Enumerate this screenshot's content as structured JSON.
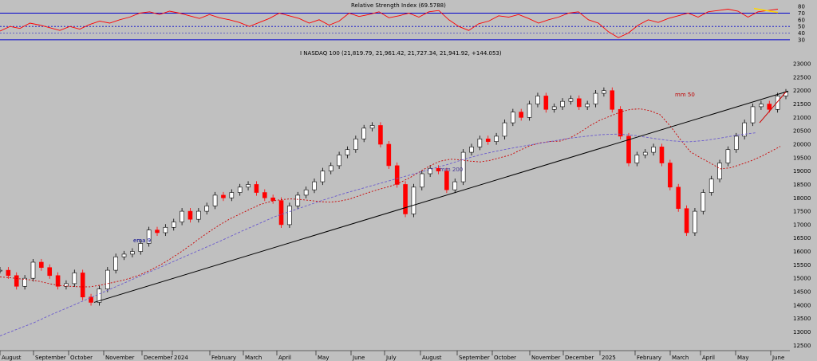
{
  "chart_data": [
    {
      "type": "line",
      "title": "Relative Strength Index (69.5788)",
      "series": [
        {
          "name": "",
          "color": "#ff0000",
          "values": [
            43,
            50,
            47,
            55,
            52,
            48,
            44,
            50,
            46,
            53,
            58,
            55,
            60,
            64,
            70,
            72,
            68,
            73,
            70,
            66,
            62,
            68,
            63,
            60,
            56,
            50,
            56,
            62,
            70,
            66,
            62,
            55,
            60,
            52,
            58,
            70,
            65,
            68,
            72,
            63,
            66,
            70,
            64,
            72,
            74,
            60,
            50,
            44,
            54,
            58,
            66,
            64,
            68,
            62,
            55,
            60,
            64,
            70,
            72,
            60,
            55,
            42,
            33,
            40,
            52,
            60,
            56,
            62,
            66,
            70,
            64,
            72,
            74,
            76,
            73,
            64,
            72,
            74,
            76
          ]
        }
      ],
      "yticks": [
        30,
        40,
        50,
        60,
        70,
        80
      ],
      "ylim": [
        25,
        85
      ],
      "reference_levels": [
        30,
        50,
        70
      ],
      "annotation_color": "#ffd700"
    },
    {
      "type": "line",
      "title": "I NASDAQ 100 (21,819.79, 21,961.42, 21,727.34, 21,941.92, +144.053)",
      "ylim": [
        12300,
        23300
      ],
      "yticks": [
        12500,
        13000,
        13500,
        14000,
        14500,
        15000,
        15500,
        16000,
        16500,
        17000,
        17500,
        18000,
        18500,
        19000,
        19500,
        20000,
        20500,
        21000,
        21500,
        22000,
        22500,
        23000
      ],
      "x_labels": [
        "August",
        "September",
        "October",
        "November",
        "December",
        "2024",
        "February",
        "March",
        "April",
        "May",
        "June",
        "July",
        "August",
        "September",
        "October",
        "November",
        "December",
        "2025",
        "February",
        "March",
        "April",
        "May",
        "June"
      ],
      "series": [
        {
          "name": "I NASDAQ 100",
          "color": "#d00000",
          "values": [
            15300,
            15100,
            14700,
            15000,
            15600,
            15400,
            15100,
            14700,
            14800,
            15200,
            14300,
            14100,
            14600,
            15300,
            15800,
            15900,
            16000,
            16300,
            16800,
            16700,
            16900,
            17100,
            17500,
            17200,
            17500,
            17700,
            18100,
            18000,
            18200,
            18400,
            18500,
            18200,
            18000,
            17900,
            17000,
            17700,
            18100,
            18300,
            18600,
            19000,
            19200,
            19600,
            19800,
            20200,
            20600,
            20700,
            20000,
            19200,
            18500,
            17400,
            18400,
            18900,
            19100,
            19000,
            18300,
            18600,
            19700,
            19900,
            20200,
            20100,
            20300,
            20800,
            21200,
            21000,
            21500,
            21800,
            21300,
            21400,
            21600,
            21700,
            21400,
            21500,
            21900,
            22000,
            21300,
            20300,
            19300,
            19600,
            19700,
            19900,
            19300,
            18400,
            17600,
            16700,
            17500,
            18200,
            18700,
            19300,
            19800,
            20300,
            20800,
            21400,
            21500,
            21300,
            21800,
            21940
          ]
        },
        {
          "name": "ema 9",
          "color": "#cc0000",
          "label": "ema 9",
          "values": [
            15050,
            15020,
            14980,
            14940,
            14880,
            14790,
            14730,
            14700,
            14680,
            14680,
            14740,
            14820,
            14900,
            15000,
            15130,
            15300,
            15490,
            15720,
            15960,
            16220,
            16500,
            16760,
            17000,
            17220,
            17400,
            17580,
            17750,
            17860,
            17930,
            17960,
            17940,
            17900,
            17860,
            17840,
            17880,
            17960,
            18090,
            18220,
            18330,
            18430,
            18570,
            18760,
            18980,
            19200,
            19370,
            19440,
            19420,
            19370,
            19340,
            19400,
            19500,
            19600,
            19780,
            19950,
            20050,
            20100,
            20120,
            20240,
            20450,
            20700,
            20900,
            21050,
            21200,
            21300,
            21320,
            21250,
            21100,
            20680,
            20180,
            19720,
            19500,
            19300,
            19080,
            19120,
            19240,
            19370,
            19530,
            19720,
            19920
          ]
        },
        {
          "name": "mm 50",
          "color": "#6a5acd",
          "label": "mm 50",
          "values": [
            12850,
            13100,
            13350,
            13650,
            13920,
            14200,
            14480,
            14760,
            15040,
            15320,
            15600,
            15880,
            16160,
            16440,
            16740,
            17020,
            17300,
            17520,
            17740,
            17960,
            18160,
            18340,
            18520,
            18700,
            18880,
            19060,
            19240,
            19440,
            19620,
            19760,
            19880,
            19990,
            20100,
            20210,
            20290,
            20360,
            20380,
            20320,
            20220,
            20130,
            20090,
            20140,
            20240,
            20350,
            20430
          ]
        },
        {
          "name": "trendline",
          "color": "#000000",
          "values": [
            14100,
            21980
          ]
        }
      ],
      "annotations": [
        "ema 9",
        "mm 200",
        "mm 50"
      ]
    }
  ],
  "labels": {
    "rsi_title": "Relative Strength Index (69.5788)",
    "price_title": "I NASDAQ 100 (21,819.79, 21,961.42, 21,727.34, 21,941.92, +144.053)",
    "ema9": "ema 9",
    "mm200": "mm 200",
    "mm50": "mm 50"
  }
}
